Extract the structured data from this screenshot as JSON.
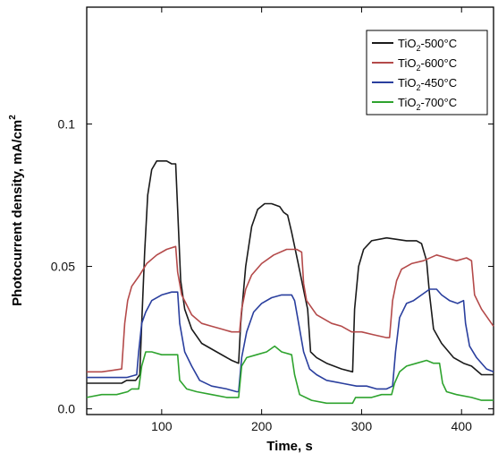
{
  "chart_data": {
    "type": "line",
    "xlabel": "Time, s",
    "ylabel_main": "Photocurrent density, mA/cm",
    "ylabel_sup": "2",
    "xlim": [
      25,
      432
    ],
    "ylim": [
      -0.002,
      0.141
    ],
    "xticks": [
      100,
      200,
      300,
      400
    ],
    "yticks": [
      0.0,
      0.05,
      0.1
    ],
    "ytick_labels": [
      "0.0",
      "0.05",
      "0.1"
    ],
    "legend_position": "top-right",
    "series": [
      {
        "name": "TiO2-500°C",
        "legend_main": "TiO",
        "legend_sub": "2",
        "legend_suffix": "-500°C",
        "color": "#1a1a1a",
        "points": [
          [
            25,
            0.009
          ],
          [
            60,
            0.009
          ],
          [
            65,
            0.01
          ],
          [
            74,
            0.01
          ],
          [
            78,
            0.012
          ],
          [
            80,
            0.03
          ],
          [
            83,
            0.055
          ],
          [
            86,
            0.075
          ],
          [
            90,
            0.084
          ],
          [
            95,
            0.087
          ],
          [
            100,
            0.087
          ],
          [
            105,
            0.087
          ],
          [
            110,
            0.086
          ],
          [
            114,
            0.086
          ],
          [
            116,
            0.07
          ],
          [
            119,
            0.045
          ],
          [
            123,
            0.035
          ],
          [
            130,
            0.028
          ],
          [
            140,
            0.023
          ],
          [
            155,
            0.02
          ],
          [
            170,
            0.017
          ],
          [
            177,
            0.016
          ],
          [
            179,
            0.03
          ],
          [
            184,
            0.05
          ],
          [
            190,
            0.064
          ],
          [
            196,
            0.07
          ],
          [
            203,
            0.072
          ],
          [
            210,
            0.072
          ],
          [
            218,
            0.071
          ],
          [
            222,
            0.069
          ],
          [
            226,
            0.068
          ],
          [
            230,
            0.062
          ],
          [
            236,
            0.052
          ],
          [
            243,
            0.04
          ],
          [
            246,
            0.035
          ],
          [
            249,
            0.02
          ],
          [
            255,
            0.018
          ],
          [
            265,
            0.016
          ],
          [
            280,
            0.014
          ],
          [
            291,
            0.013
          ],
          [
            293,
            0.035
          ],
          [
            297,
            0.05
          ],
          [
            302,
            0.056
          ],
          [
            310,
            0.059
          ],
          [
            325,
            0.06
          ],
          [
            345,
            0.059
          ],
          [
            355,
            0.059
          ],
          [
            360,
            0.058
          ],
          [
            365,
            0.052
          ],
          [
            368,
            0.04
          ],
          [
            372,
            0.028
          ],
          [
            380,
            0.023
          ],
          [
            392,
            0.018
          ],
          [
            402,
            0.016
          ],
          [
            410,
            0.015
          ],
          [
            420,
            0.012
          ],
          [
            432,
            0.012
          ]
        ]
      },
      {
        "name": "TiO2-600°C",
        "legend_main": "TiO",
        "legend_sub": "2",
        "legend_suffix": "-600°C",
        "color": "#b44a4a",
        "points": [
          [
            25,
            0.013
          ],
          [
            40,
            0.013
          ],
          [
            60,
            0.014
          ],
          [
            63,
            0.03
          ],
          [
            66,
            0.038
          ],
          [
            70,
            0.043
          ],
          [
            78,
            0.047
          ],
          [
            85,
            0.051
          ],
          [
            95,
            0.054
          ],
          [
            105,
            0.056
          ],
          [
            114,
            0.057
          ],
          [
            116,
            0.048
          ],
          [
            120,
            0.04
          ],
          [
            130,
            0.033
          ],
          [
            140,
            0.03
          ],
          [
            150,
            0.029
          ],
          [
            160,
            0.028
          ],
          [
            170,
            0.027
          ],
          [
            178,
            0.027
          ],
          [
            180,
            0.035
          ],
          [
            184,
            0.042
          ],
          [
            190,
            0.047
          ],
          [
            200,
            0.051
          ],
          [
            212,
            0.054
          ],
          [
            225,
            0.056
          ],
          [
            235,
            0.056
          ],
          [
            240,
            0.055
          ],
          [
            242,
            0.044
          ],
          [
            245,
            0.038
          ],
          [
            255,
            0.033
          ],
          [
            270,
            0.03
          ],
          [
            280,
            0.029
          ],
          [
            290,
            0.027
          ],
          [
            300,
            0.027
          ],
          [
            312,
            0.026
          ],
          [
            325,
            0.025
          ],
          [
            328,
            0.025
          ],
          [
            331,
            0.038
          ],
          [
            335,
            0.045
          ],
          [
            340,
            0.049
          ],
          [
            350,
            0.051
          ],
          [
            362,
            0.052
          ],
          [
            375,
            0.054
          ],
          [
            385,
            0.053
          ],
          [
            395,
            0.052
          ],
          [
            405,
            0.053
          ],
          [
            410,
            0.052
          ],
          [
            413,
            0.04
          ],
          [
            420,
            0.035
          ],
          [
            432,
            0.029
          ]
        ]
      },
      {
        "name": "TiO2-450°C",
        "legend_main": "TiO",
        "legend_sub": "2",
        "legend_suffix": "-450°C",
        "color": "#2a3f9e",
        "points": [
          [
            25,
            0.011
          ],
          [
            50,
            0.011
          ],
          [
            65,
            0.011
          ],
          [
            75,
            0.012
          ],
          [
            77,
            0.02
          ],
          [
            80,
            0.03
          ],
          [
            84,
            0.034
          ],
          [
            90,
            0.038
          ],
          [
            100,
            0.04
          ],
          [
            110,
            0.041
          ],
          [
            116,
            0.041
          ],
          [
            118,
            0.03
          ],
          [
            123,
            0.02
          ],
          [
            130,
            0.015
          ],
          [
            138,
            0.01
          ],
          [
            150,
            0.008
          ],
          [
            165,
            0.007
          ],
          [
            175,
            0.006
          ],
          [
            177,
            0.006
          ],
          [
            180,
            0.018
          ],
          [
            185,
            0.027
          ],
          [
            192,
            0.034
          ],
          [
            200,
            0.037
          ],
          [
            210,
            0.039
          ],
          [
            220,
            0.04
          ],
          [
            230,
            0.04
          ],
          [
            233,
            0.038
          ],
          [
            236,
            0.032
          ],
          [
            242,
            0.02
          ],
          [
            248,
            0.014
          ],
          [
            255,
            0.012
          ],
          [
            265,
            0.01
          ],
          [
            280,
            0.009
          ],
          [
            295,
            0.008
          ],
          [
            305,
            0.008
          ],
          [
            315,
            0.007
          ],
          [
            325,
            0.007
          ],
          [
            331,
            0.008
          ],
          [
            334,
            0.02
          ],
          [
            338,
            0.032
          ],
          [
            345,
            0.037
          ],
          [
            352,
            0.038
          ],
          [
            360,
            0.04
          ],
          [
            368,
            0.042
          ],
          [
            375,
            0.042
          ],
          [
            380,
            0.04
          ],
          [
            388,
            0.038
          ],
          [
            396,
            0.037
          ],
          [
            402,
            0.038
          ],
          [
            404,
            0.03
          ],
          [
            408,
            0.022
          ],
          [
            415,
            0.018
          ],
          [
            425,
            0.014
          ],
          [
            432,
            0.013
          ]
        ]
      },
      {
        "name": "TiO2-700°C",
        "legend_main": "TiO",
        "legend_sub": "2",
        "legend_suffix": "-700°C",
        "color": "#2ea32e",
        "points": [
          [
            25,
            0.004
          ],
          [
            40,
            0.005
          ],
          [
            55,
            0.005
          ],
          [
            66,
            0.006
          ],
          [
            70,
            0.007
          ],
          [
            77,
            0.007
          ],
          [
            80,
            0.015
          ],
          [
            84,
            0.02
          ],
          [
            90,
            0.02
          ],
          [
            100,
            0.019
          ],
          [
            110,
            0.019
          ],
          [
            116,
            0.019
          ],
          [
            118,
            0.01
          ],
          [
            125,
            0.007
          ],
          [
            135,
            0.006
          ],
          [
            150,
            0.005
          ],
          [
            165,
            0.004
          ],
          [
            177,
            0.004
          ],
          [
            180,
            0.015
          ],
          [
            185,
            0.018
          ],
          [
            195,
            0.019
          ],
          [
            205,
            0.02
          ],
          [
            213,
            0.022
          ],
          [
            220,
            0.02
          ],
          [
            230,
            0.019
          ],
          [
            233,
            0.012
          ],
          [
            238,
            0.005
          ],
          [
            250,
            0.003
          ],
          [
            265,
            0.002
          ],
          [
            280,
            0.002
          ],
          [
            291,
            0.002
          ],
          [
            294,
            0.004
          ],
          [
            300,
            0.004
          ],
          [
            310,
            0.004
          ],
          [
            320,
            0.005
          ],
          [
            330,
            0.005
          ],
          [
            333,
            0.009
          ],
          [
            338,
            0.013
          ],
          [
            345,
            0.015
          ],
          [
            355,
            0.016
          ],
          [
            365,
            0.017
          ],
          [
            372,
            0.016
          ],
          [
            378,
            0.016
          ],
          [
            381,
            0.009
          ],
          [
            385,
            0.006
          ],
          [
            395,
            0.005
          ],
          [
            410,
            0.004
          ],
          [
            420,
            0.003
          ],
          [
            432,
            0.003
          ]
        ]
      }
    ]
  }
}
